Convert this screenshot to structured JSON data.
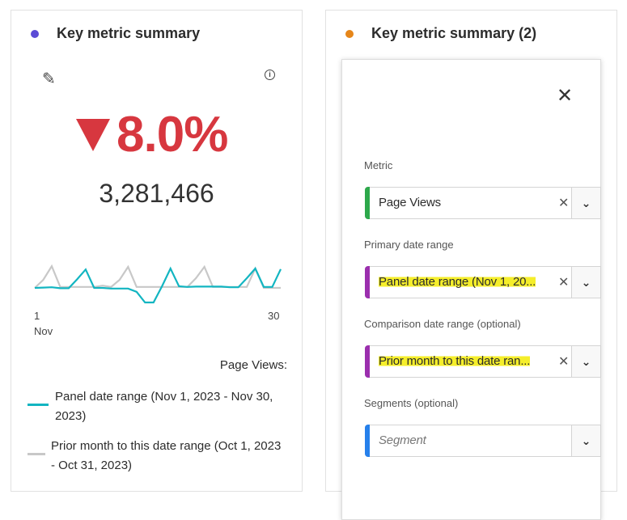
{
  "left_panel": {
    "title": "Key metric summary",
    "dot_color": "#5b4bd6",
    "change": "8.0%",
    "direction": "down",
    "value": "3,281,466",
    "x_start": "1",
    "x_start_month": "Nov",
    "x_end": "30",
    "legend_title": "Page Views:",
    "legend": [
      {
        "label": "Panel date range (Nov 1, 2023 - Nov 30, 2023)",
        "color": "#12b5c1"
      },
      {
        "label": "Prior month to this date range (Oct 1, 2023 - Oct 31, 2023)",
        "color": "#c8c8c8"
      }
    ]
  },
  "chart_data": {
    "type": "line",
    "title": "",
    "xlabel": "Nov",
    "ylabel": "Page Views",
    "x": [
      1,
      2,
      3,
      4,
      5,
      6,
      7,
      8,
      9,
      10,
      11,
      12,
      13,
      14,
      15,
      16,
      17,
      18,
      19,
      20,
      21,
      22,
      23,
      24,
      25,
      26,
      27,
      28,
      29,
      30
    ],
    "series": [
      {
        "name": "Panel date range (Nov 1, 2023 - Nov 30, 2023)",
        "values": [
          55,
          56,
          57,
          54,
          54,
          82,
          112,
          55,
          55,
          53,
          53,
          53,
          43,
          10,
          10,
          60,
          115,
          60,
          58,
          59,
          59,
          59,
          59,
          57,
          57,
          85,
          115,
          58,
          58,
          113
        ]
      },
      {
        "name": "Prior month to this date range (Oct 1, 2023 - Oct 31, 2023)",
        "values": [
          55,
          80,
          122,
          58,
          58,
          58,
          58,
          58,
          62,
          58,
          80,
          120,
          58,
          58,
          58,
          58,
          58,
          58,
          58,
          85,
          120,
          58,
          58,
          58,
          58,
          58,
          115,
          55,
          55,
          55
        ]
      }
    ]
  },
  "right_panel": {
    "title": "Key metric summary (2)",
    "dot_color": "#e68619",
    "fields": [
      {
        "label": "Metric",
        "value": "Page Views",
        "color": "#2da84b"
      },
      {
        "label": "Primary date range",
        "value": "Panel date range (Nov 1, 20...",
        "color": "#9b2fae"
      },
      {
        "label": "Comparison date range (optional)",
        "value": "Prior month to this date ran...",
        "color": "#9b2fae"
      },
      {
        "label": "Segments (optional)",
        "placeholder": "Segment",
        "color": "#2680eb"
      }
    ]
  }
}
